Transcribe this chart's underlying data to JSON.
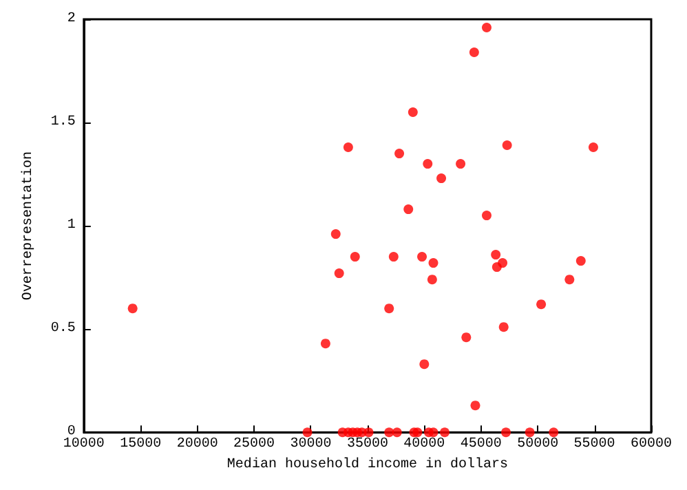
{
  "chart_data": {
    "type": "scatter",
    "xlabel": "Median household income in dollars",
    "ylabel": "Overrepresentation",
    "x": [
      14300,
      31300,
      32200,
      32500,
      33300,
      33900,
      36900,
      37300,
      37800,
      38600,
      39000,
      39800,
      40000,
      40300,
      40800,
      40700,
      41500,
      43200,
      43700,
      44400,
      44500,
      45500,
      45500,
      46300,
      46400,
      46900,
      47000,
      47300,
      50300,
      52800,
      53800,
      54900,
      29700,
      32800,
      33300,
      33700,
      34100,
      34500,
      35100,
      36900,
      37600,
      39100,
      39400,
      40400,
      40800,
      41800,
      47200,
      49300,
      51400
    ],
    "series": [
      {
        "color": "#ff0000",
        "values": [
          0.6,
          0.43,
          0.96,
          0.77,
          1.38,
          0.85,
          0.6,
          0.85,
          1.35,
          1.08,
          1.55,
          0.85,
          0.33,
          1.3,
          0.82,
          0.74,
          1.23,
          1.3,
          0.46,
          1.84,
          0.13,
          1.96,
          1.05,
          0.86,
          0.8,
          0.82,
          0.51,
          1.39,
          0.62,
          0.74,
          0.83,
          1.38,
          0,
          0,
          0,
          0,
          0,
          0,
          0,
          0,
          0,
          0,
          0,
          0,
          0,
          0,
          0,
          0,
          0
        ]
      }
    ],
    "xlim": [
      10000,
      60000
    ],
    "xticks": [
      10000,
      15000,
      20000,
      25000,
      30000,
      35000,
      40000,
      45000,
      50000,
      55000,
      60000
    ],
    "ylim": [
      0,
      2
    ],
    "yticks": [
      0,
      0.5,
      1,
      1.5,
      2
    ],
    "grid": false,
    "marker": "circle"
  }
}
